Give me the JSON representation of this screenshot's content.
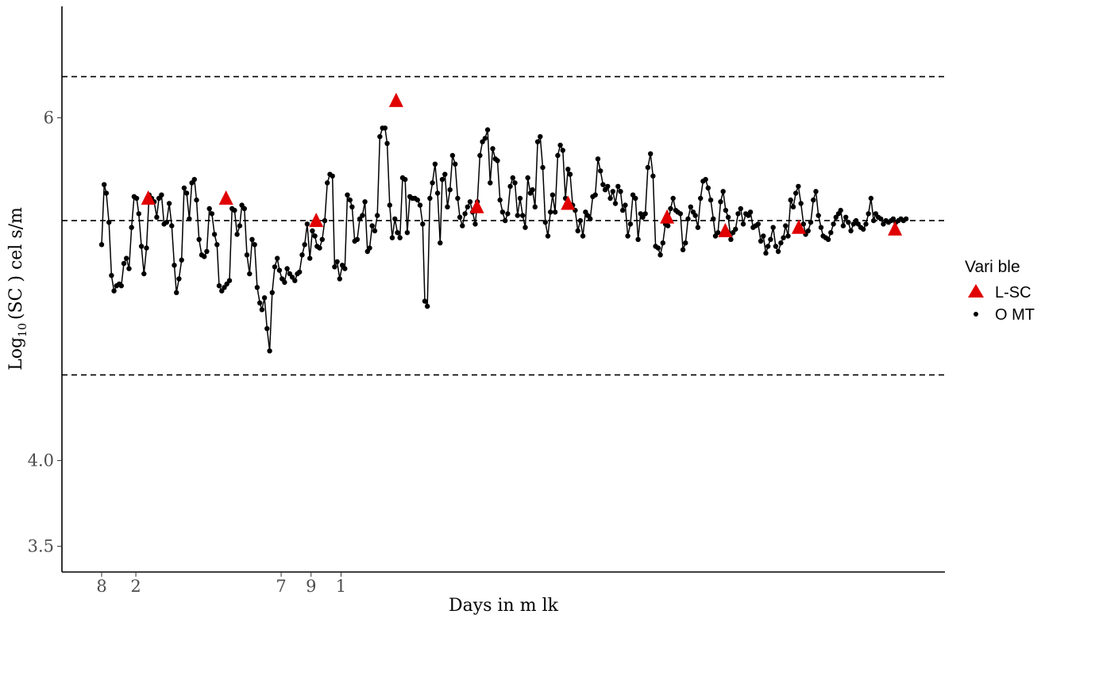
{
  "chart_data": {
    "type": "line",
    "xlabel": "Days in m lk",
    "ylabel": "Log10 (SC ) cel s/m",
    "ylabel_main": "Log",
    "ylabel_sub": "10",
    "ylabel_rest": "(SC   )  cel s/m",
    "ylim": [
      3.35,
      6.65
    ],
    "y_ticks": [
      {
        "value": 3.5,
        "label": "3.5"
      },
      {
        "value": 4.0,
        "label": "4.0"
      },
      {
        "value": 6.0,
        "label": "6"
      }
    ],
    "x_ticks": [
      {
        "value": 8,
        "label": "8"
      },
      {
        "value": 16,
        "label": "2"
      },
      {
        "value": 50,
        "label": "7"
      },
      {
        "value": 57,
        "label": "9"
      },
      {
        "value": 64,
        "label": "1"
      }
    ],
    "reference_lines": [
      4.5,
      5.4,
      6.24
    ],
    "legend": {
      "title": "Vari ble",
      "entries": [
        {
          "label": "L-SC",
          "marker": "triangle",
          "color": "#e00000"
        },
        {
          "label": "O   MT",
          "marker": "point",
          "color": "#000000"
        }
      ]
    },
    "series": [
      {
        "name": "O   MT",
        "color": "#000000",
        "x": [
          8.0,
          8.6,
          9.1,
          9.7,
          10.3,
          10.9,
          11.5,
          12.1,
          12.6,
          13.2,
          13.8,
          14.4,
          15.0,
          15.6,
          16.2,
          16.7,
          17.3,
          17.9,
          18.5,
          19.1,
          19.7,
          20.3,
          20.9,
          21.4,
          22.0,
          22.6,
          23.2,
          23.8,
          24.4,
          25.0,
          25.5,
          26.1,
          26.7,
          27.3,
          27.9,
          28.5,
          29.1,
          29.7,
          30.2,
          30.8,
          31.4,
          32.0,
          32.6,
          33.2,
          33.8,
          34.4,
          35.0,
          35.5,
          36.1,
          36.7,
          37.3,
          37.9,
          38.5,
          39.1,
          39.7,
          40.3,
          40.8,
          41.4,
          42.0,
          42.6,
          43.2,
          43.8,
          44.4,
          45.0,
          45.5,
          46.1,
          46.7,
          47.3,
          47.9,
          48.5,
          49.1,
          49.6,
          50.2,
          50.8,
          51.4,
          52.0,
          52.6,
          53.2,
          53.8,
          54.3,
          54.9,
          55.5,
          56.1,
          56.7,
          57.3,
          57.9,
          58.4,
          59.0,
          59.6,
          60.2,
          60.8,
          61.4,
          62.0,
          62.5,
          63.1,
          63.7,
          64.3,
          64.9,
          65.5,
          66.1,
          66.6,
          67.2,
          67.8,
          68.4,
          69.0,
          69.6,
          70.2,
          70.7,
          71.3,
          71.9,
          72.5,
          73.1,
          73.7,
          74.3,
          74.8,
          75.4,
          76.0,
          76.6,
          77.2,
          77.8,
          78.4,
          79.0,
          79.5,
          80.1,
          80.7,
          81.3,
          81.9,
          82.5,
          83.1,
          83.6,
          84.2,
          84.8,
          85.4,
          86.0,
          86.6,
          87.2,
          87.7,
          88.3,
          88.9,
          89.5,
          90.1,
          90.7,
          91.3,
          91.8,
          92.4,
          93.0,
          93.6,
          94.2,
          94.8,
          95.4,
          95.9,
          96.5,
          97.1,
          97.7,
          98.3,
          98.9,
          99.5,
          100.1,
          100.6,
          101.2,
          101.8,
          102.4,
          103.0,
          103.6,
          104.2,
          104.7,
          105.3,
          105.9,
          106.5,
          107.1,
          107.7,
          108.3,
          108.8,
          109.4,
          110.0,
          110.6,
          111.2,
          111.8,
          112.4,
          113.0,
          113.5,
          114.1,
          114.7,
          115.3,
          115.9,
          116.5,
          117.1,
          117.6,
          118.2,
          118.8,
          119.4,
          120.0,
          120.6,
          121.2,
          121.7,
          122.3,
          122.9,
          123.5,
          124.1,
          124.7,
          125.3,
          125.8,
          126.4,
          127.0,
          127.6,
          128.2,
          128.8,
          129.4,
          129.9,
          130.5,
          131.1,
          131.7,
          132.3,
          132.9,
          133.5,
          134.1,
          134.6,
          135.2,
          135.8,
          136.4,
          137.0,
          137.6,
          138.2,
          138.7,
          139.3,
          139.9,
          140.5,
          141.1,
          141.7,
          142.3,
          142.8,
          143.4,
          144.0,
          144.6,
          145.2,
          145.8,
          146.4,
          146.9,
          147.5,
          148.1,
          148.7,
          149.3,
          149.9,
          150.5,
          151.1,
          151.6,
          152.2,
          152.8,
          153.4,
          154.0,
          154.6,
          155.2,
          155.7,
          156.3,
          156.9,
          157.5,
          158.1,
          158.7,
          159.3,
          159.8,
          160.4,
          161.0,
          161.6,
          162.2,
          162.8,
          163.4,
          163.9,
          164.5,
          165.1,
          165.7,
          166.3,
          166.9,
          167.5,
          168.0,
          168.6,
          169.2,
          169.8,
          170.4,
          171.0,
          171.6,
          172.2,
          172.7,
          173.3,
          173.9,
          174.5,
          175.1,
          175.7,
          176.3,
          176.8,
          177.4,
          178.0,
          178.6,
          179.2,
          179.8,
          180.4,
          180.9,
          181.5,
          182.1,
          182.7,
          183.3,
          183.9,
          184.5,
          185.0,
          185.6,
          186.2,
          186.8,
          187.4,
          188.0,
          188.6,
          189.1,
          189.7,
          190.3,
          190.9,
          191.5,
          192.1,
          192.7,
          193.2,
          193.8,
          194.4,
          195.0,
          195.6,
          196.2
        ],
        "values": [
          5.26,
          5.61,
          5.56,
          5.39,
          5.08,
          4.99,
          5.02,
          5.03,
          5.02,
          5.15,
          5.18,
          5.12,
          5.36,
          5.54,
          5.53,
          5.44,
          5.25,
          5.09,
          5.24,
          5.55,
          5.53,
          5.51,
          5.42,
          5.53,
          5.55,
          5.38,
          5.39,
          5.5,
          5.37,
          5.14,
          4.98,
          5.06,
          5.17,
          5.59,
          5.56,
          5.41,
          5.62,
          5.64,
          5.52,
          5.29,
          5.2,
          5.19,
          5.22,
          5.47,
          5.44,
          5.32,
          5.26,
          5.02,
          4.99,
          5.01,
          5.03,
          5.05,
          5.47,
          5.46,
          5.32,
          5.37,
          5.49,
          5.47,
          5.2,
          5.09,
          5.29,
          5.26,
          5.01,
          4.92,
          4.88,
          4.95,
          4.77,
          4.64,
          4.98,
          5.13,
          5.18,
          5.11,
          5.06,
          5.04,
          5.12,
          5.09,
          5.07,
          5.05,
          5.09,
          5.1,
          5.2,
          5.26,
          5.38,
          5.18,
          5.34,
          5.31,
          5.25,
          5.24,
          5.29,
          5.4,
          5.62,
          5.67,
          5.66,
          5.13,
          5.16,
          5.06,
          5.14,
          5.12,
          5.55,
          5.52,
          5.48,
          5.28,
          5.29,
          5.41,
          5.43,
          5.51,
          5.22,
          5.24,
          5.37,
          5.34,
          5.43,
          5.89,
          5.94,
          5.94,
          5.85,
          5.49,
          5.3,
          5.41,
          5.33,
          5.3,
          5.65,
          5.64,
          5.33,
          5.54,
          5.53,
          5.53,
          5.52,
          5.49,
          5.38,
          4.93,
          4.9,
          5.53,
          5.62,
          5.73,
          5.56,
          5.27,
          5.64,
          5.67,
          5.48,
          5.58,
          5.78,
          5.73,
          5.53,
          5.42,
          5.37,
          5.44,
          5.48,
          5.51,
          5.45,
          5.38,
          5.51,
          5.78,
          5.86,
          5.88,
          5.93,
          5.62,
          5.82,
          5.76,
          5.75,
          5.52,
          5.45,
          5.4,
          5.44,
          5.6,
          5.65,
          5.62,
          5.43,
          5.53,
          5.43,
          5.36,
          5.65,
          5.56,
          5.58,
          5.48,
          5.86,
          5.89,
          5.71,
          5.39,
          5.31,
          5.45,
          5.55,
          5.45,
          5.78,
          5.84,
          5.81,
          5.53,
          5.7,
          5.67,
          5.49,
          5.46,
          5.34,
          5.4,
          5.31,
          5.45,
          5.43,
          5.41,
          5.54,
          5.55,
          5.76,
          5.69,
          5.61,
          5.58,
          5.6,
          5.53,
          5.57,
          5.5,
          5.6,
          5.57,
          5.46,
          5.49,
          5.31,
          5.38,
          5.55,
          5.53,
          5.29,
          5.44,
          5.42,
          5.44,
          5.71,
          5.79,
          5.66,
          5.25,
          5.24,
          5.2,
          5.27,
          5.38,
          5.37,
          5.47,
          5.53,
          5.46,
          5.45,
          5.44,
          5.23,
          5.27,
          5.41,
          5.48,
          5.45,
          5.43,
          5.36,
          5.53,
          5.63,
          5.64,
          5.59,
          5.52,
          5.41,
          5.31,
          5.33,
          5.51,
          5.57,
          5.46,
          5.42,
          5.29,
          5.33,
          5.35,
          5.44,
          5.47,
          5.38,
          5.44,
          5.43,
          5.45,
          5.36,
          5.37,
          5.38,
          5.28,
          5.31,
          5.21,
          5.25,
          5.29,
          5.36,
          5.25,
          5.22,
          5.27,
          5.3,
          5.37,
          5.31,
          5.52,
          5.48,
          5.56,
          5.6,
          5.5,
          5.38,
          5.32,
          5.34,
          5.39,
          5.52,
          5.57,
          5.43,
          5.36,
          5.31,
          5.3,
          5.29,
          5.33,
          5.38,
          5.42,
          5.44,
          5.46,
          5.37,
          5.42,
          5.39,
          5.34,
          5.38,
          5.4,
          5.38,
          5.36,
          5.35,
          5.38,
          5.44,
          5.53,
          5.4,
          5.44,
          5.42,
          5.41,
          5.38,
          5.4,
          5.39,
          5.4,
          5.41,
          5.39,
          5.4,
          5.41,
          5.4,
          5.41
        ]
      },
      {
        "name": "L-SC",
        "color": "#e00000",
        "x": [
          18.9,
          37.1,
          58.2,
          76.9,
          95.8,
          117.1,
          140.3,
          153.9,
          171.1,
          193.6
        ],
        "values": [
          5.53,
          5.53,
          5.4,
          6.1,
          5.48,
          5.5,
          5.42,
          5.34,
          5.36,
          5.35
        ]
      }
    ]
  }
}
